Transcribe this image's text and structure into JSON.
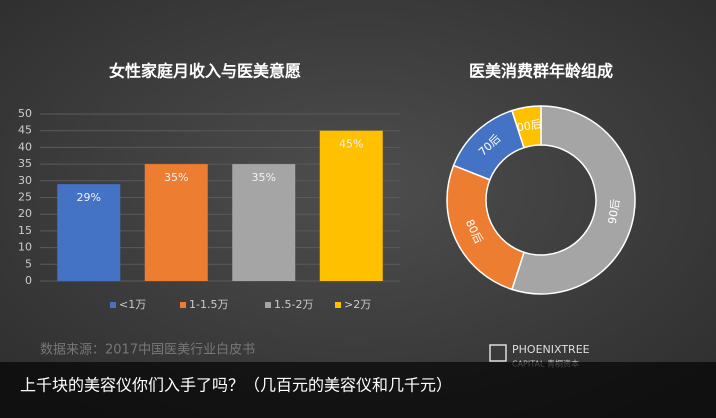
{
  "chart_data": [
    {
      "type": "bar",
      "title": "女性家庭月收入与医美意愿",
      "categories": [
        "<1万",
        "1-1.5万",
        "1.5-2万",
        ">2万"
      ],
      "values": [
        29,
        35,
        35,
        45
      ],
      "value_labels": [
        "29%",
        "35%",
        "35%",
        "45%"
      ],
      "colors": [
        "#4472c4",
        "#ed7d31",
        "#a5a5a5",
        "#ffc000"
      ],
      "ylim": [
        0,
        50
      ],
      "yticks": [
        0,
        5,
        10,
        15,
        20,
        25,
        30,
        35,
        40,
        45,
        50
      ],
      "grid": true,
      "legend": "bottom"
    },
    {
      "type": "pie",
      "title": "医美消费群年龄组成",
      "donut": true,
      "categories": [
        "90后",
        "80后",
        "70后",
        "00后"
      ],
      "values": [
        55,
        26,
        14,
        5
      ],
      "colors": [
        "#a5a5a5",
        "#ed7d31",
        "#4472c4",
        "#ffc000"
      ]
    }
  ],
  "source": "数据来源：2017中国医美行业白皮书",
  "logo": {
    "name": "PHOENIXTREE",
    "sub": "CAPITAL 青桐资本"
  },
  "caption": "上千块的美容仪你们入手了吗？（几百元的美容仪和几千元）"
}
